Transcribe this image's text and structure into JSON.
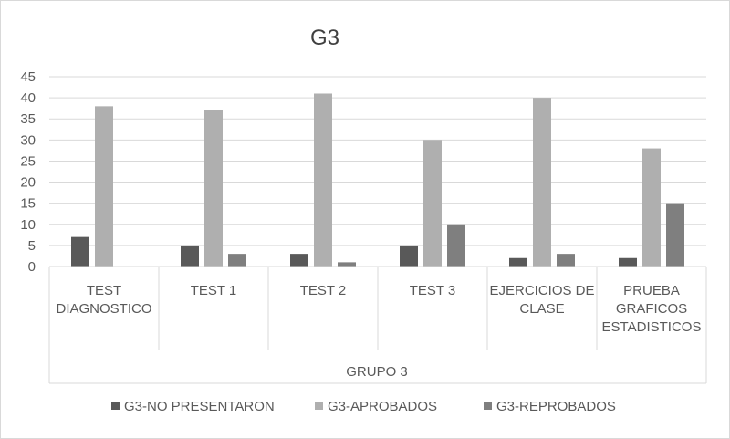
{
  "chart_data": {
    "type": "bar",
    "title": "G3",
    "group_label": "GRUPO 3",
    "categories": [
      [
        "TEST",
        "DIAGNOSTICO"
      ],
      [
        "TEST 1"
      ],
      [
        "TEST 2"
      ],
      [
        "TEST 3"
      ],
      [
        "EJERCICIOS DE",
        "CLASE"
      ],
      [
        "PRUEBA",
        "GRAFICOS",
        "ESTADISTICOS"
      ]
    ],
    "series": [
      {
        "name": "G3-NO PRESENTARON",
        "color": "#595959",
        "values": [
          7,
          5,
          3,
          5,
          2,
          2
        ]
      },
      {
        "name": "G3-APROBADOS",
        "color": "#afafaf",
        "values": [
          38,
          37,
          41,
          30,
          40,
          28
        ]
      },
      {
        "name": "G3-REPROBADOS",
        "color": "#7f7f7f",
        "values": [
          0,
          3,
          1,
          10,
          3,
          15
        ]
      }
    ],
    "ylim": [
      0,
      45
    ],
    "yticks": [
      0,
      5,
      10,
      15,
      20,
      25,
      30,
      35,
      40,
      45
    ],
    "grid": true,
    "legend": "bottom"
  }
}
